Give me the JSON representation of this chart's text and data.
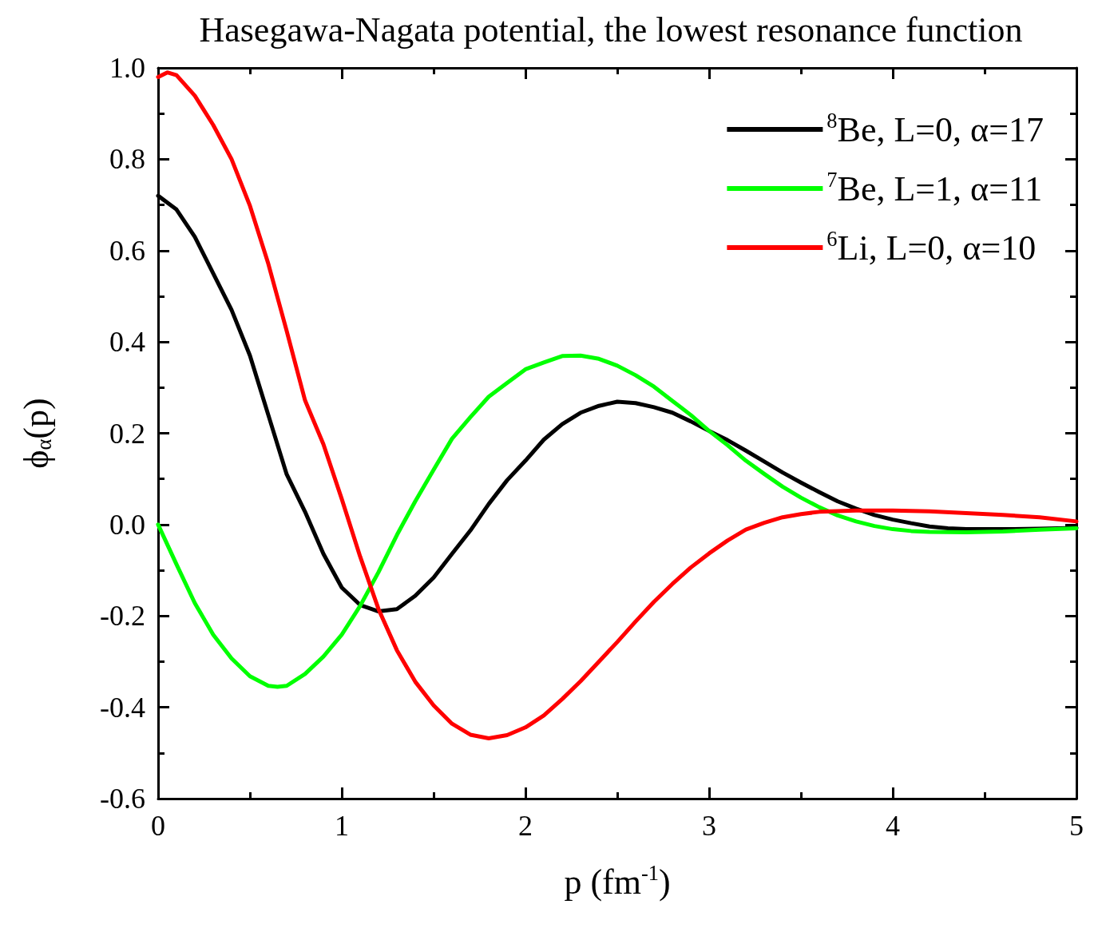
{
  "chart_data": {
    "type": "line",
    "title": "Hasegawa-Nagata potential, the lowest resonance function",
    "xlabel": "p (fm$^{-1}$)",
    "ylabel": "ϕ$_{α}$(p)",
    "xlim": [
      0,
      5
    ],
    "xticks": [
      0,
      1,
      2,
      3,
      4,
      5
    ],
    "ylim": [
      -0.6,
      1.0
    ],
    "yticks": [
      -0.6,
      -0.4,
      -0.2,
      {
        "value": 0,
        "label": "0.0"
      },
      0.2,
      0.4,
      0.6,
      0.8,
      {
        "value": 1,
        "label": "1.0"
      }
    ],
    "grid": false,
    "legend": "top right",
    "line_style": "solid",
    "series": [
      {
        "name": "$^{8}$Be, L=0, α=17",
        "color": "#000000",
        "x": [
          0,
          0.1,
          0.2,
          0.3,
          0.4,
          0.5,
          0.6,
          0.7,
          0.8,
          0.9,
          1.0,
          1.1,
          1.2,
          1.3,
          1.4,
          1.5,
          1.6,
          1.7,
          1.8,
          1.9,
          2.0,
          2.1,
          2.2,
          2.3,
          2.4,
          2.5,
          2.6,
          2.7,
          2.8,
          2.9,
          3.0,
          3.1,
          3.2,
          3.3,
          3.4,
          3.5,
          3.6,
          3.7,
          3.8,
          3.9,
          4.0,
          4.1,
          4.2,
          4.3,
          4.4,
          4.6,
          4.8,
          5.0
        ],
        "values": [
          0.72,
          0.69,
          0.63,
          0.55,
          0.47,
          0.37,
          0.24,
          0.11,
          0.028,
          -0.064,
          -0.138,
          -0.176,
          -0.19,
          -0.185,
          -0.156,
          -0.116,
          -0.064,
          -0.013,
          0.045,
          0.097,
          0.14,
          0.186,
          0.22,
          0.245,
          0.26,
          0.269,
          0.266,
          0.257,
          0.245,
          0.226,
          0.205,
          0.185,
          0.162,
          0.138,
          0.114,
          0.092,
          0.071,
          0.051,
          0.035,
          0.021,
          0.011,
          0.003,
          -0.004,
          -0.008,
          -0.01,
          -0.01,
          -0.009,
          -0.007
        ]
      },
      {
        "name": "$^{7}$Be, L=1, α=11",
        "color": "#00ff00",
        "x": [
          0,
          0.1,
          0.2,
          0.3,
          0.4,
          0.5,
          0.6,
          0.65,
          0.7,
          0.8,
          0.9,
          1.0,
          1.1,
          1.2,
          1.3,
          1.4,
          1.5,
          1.6,
          1.7,
          1.8,
          1.9,
          2.0,
          2.1,
          2.2,
          2.3,
          2.4,
          2.5,
          2.6,
          2.7,
          2.8,
          2.9,
          3.0,
          3.1,
          3.2,
          3.3,
          3.4,
          3.5,
          3.6,
          3.7,
          3.8,
          3.9,
          4.0,
          4.1,
          4.2,
          4.4,
          4.6,
          4.8,
          5.0
        ],
        "values": [
          0,
          -0.087,
          -0.172,
          -0.241,
          -0.293,
          -0.332,
          -0.353,
          -0.355,
          -0.353,
          -0.327,
          -0.289,
          -0.241,
          -0.178,
          -0.104,
          -0.023,
          0.051,
          0.12,
          0.188,
          0.235,
          0.28,
          0.31,
          0.34,
          0.355,
          0.369,
          0.37,
          0.363,
          0.348,
          0.327,
          0.302,
          0.271,
          0.24,
          0.205,
          0.174,
          0.14,
          0.111,
          0.083,
          0.059,
          0.038,
          0.02,
          0.007,
          -0.003,
          -0.01,
          -0.014,
          -0.016,
          -0.017,
          -0.015,
          -0.011,
          -0.008
        ]
      },
      {
        "name": "$^{6}$Li, L=0, α=10",
        "color": "#ff0000",
        "x": [
          0,
          0.05,
          0.1,
          0.2,
          0.3,
          0.4,
          0.5,
          0.6,
          0.7,
          0.8,
          0.9,
          1.0,
          1.1,
          1.2,
          1.3,
          1.4,
          1.5,
          1.6,
          1.7,
          1.8,
          1.9,
          2.0,
          2.1,
          2.2,
          2.3,
          2.4,
          2.5,
          2.6,
          2.7,
          2.8,
          2.9,
          3.0,
          3.1,
          3.2,
          3.3,
          3.4,
          3.5,
          3.6,
          3.8,
          4.0,
          4.2,
          4.4,
          4.6,
          4.8,
          5.0
        ],
        "values": [
          0.98,
          0.99,
          0.984,
          0.939,
          0.875,
          0.8,
          0.698,
          0.571,
          0.424,
          0.272,
          0.176,
          0.056,
          -0.07,
          -0.185,
          -0.275,
          -0.344,
          -0.396,
          -0.436,
          -0.46,
          -0.468,
          -0.461,
          -0.444,
          -0.418,
          -0.382,
          -0.343,
          -0.3,
          -0.257,
          -0.212,
          -0.169,
          -0.13,
          -0.094,
          -0.063,
          -0.035,
          -0.011,
          0.004,
          0.016,
          0.023,
          0.028,
          0.031,
          0.031,
          0.029,
          0.025,
          0.021,
          0.016,
          0.007
        ]
      }
    ]
  }
}
